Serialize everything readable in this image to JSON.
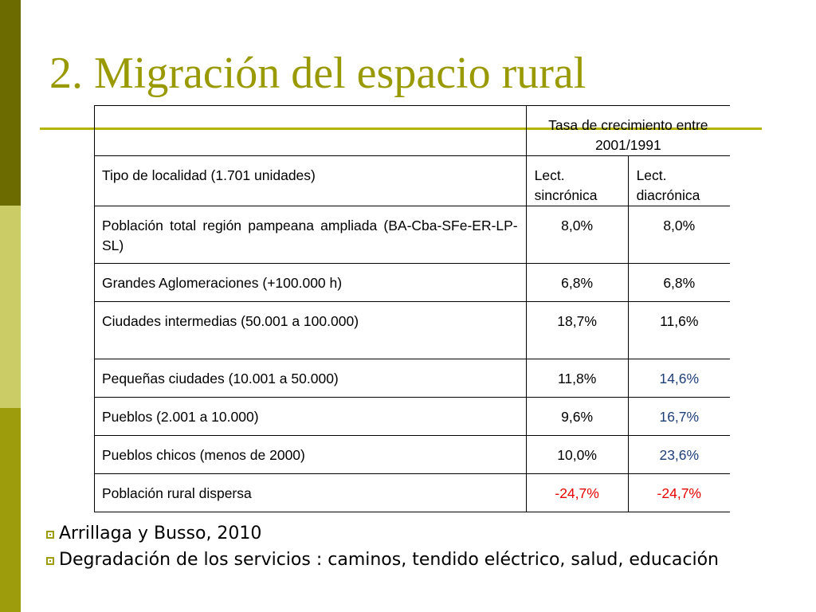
{
  "slide": {
    "title": "2. Migración del espacio rural"
  },
  "table": {
    "header_group": "Tasa de crecimiento entre 2001/1991",
    "col_headers": [
      "Tipo de localidad (1.701 unidades)",
      "Lect. sincrónica",
      "Lect. diacrónica"
    ],
    "rows": [
      {
        "label": "Población total región pampeana ampliada (BA-Cba-SFe-ER-LP-SL)",
        "sincronica": "8,0%",
        "diacronica": "8,0%"
      },
      {
        "label": "Grandes Aglomeraciones (+100.000 h)",
        "sincronica": "6,8%",
        "diacronica": "6,8%"
      },
      {
        "label": "Ciudades intermedias (50.001 a 100.000)",
        "sincronica": "18,7%",
        "diacronica": "11,6%"
      },
      {
        "label": "Pequeñas ciudades (10.001 a 50.000)",
        "sincronica": "11,8%",
        "diacronica": "14,6%"
      },
      {
        "label": "Pueblos (2.001 a 10.000)",
        "sincronica": "9,6%",
        "diacronica": "16,7%"
      },
      {
        "label": "Pueblos chicos (menos de 2000)",
        "sincronica": "10,0%",
        "diacronica": "23,6%"
      },
      {
        "label": "Población rural dispersa",
        "sincronica": "-24,7%",
        "diacronica": "-24,7%"
      }
    ]
  },
  "bullets": [
    "Arrillaga y Busso, 2010",
    "Degradación de los servicios : caminos, tendido eléctrico, salud, educación"
  ],
  "colors": {
    "title": "#999900",
    "bar_dark": "#6b6b00",
    "bar_light": "#cccc66",
    "bar_olive": "#9c9c0c",
    "highlight_blue": "#1f3f7a",
    "highlight_red": "#e60000"
  }
}
